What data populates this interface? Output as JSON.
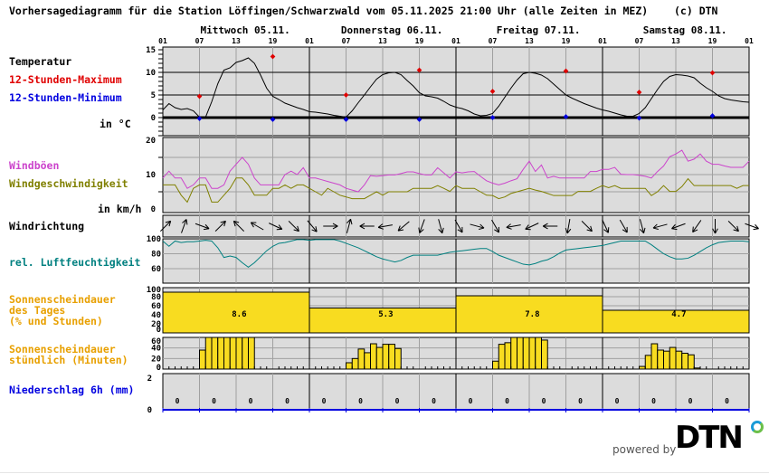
{
  "title": "Vorhersagediagramm für die Station Löffingen/Schwarzwald vom 05.11.2025 21:00 Uhr (alle Zeiten in MEZ)",
  "copyright": "(c) DTN",
  "days": [
    "Mittwoch 05.11.",
    "Donnerstag 06.11.",
    "Freitag 07.11.",
    "Samstag 08.11."
  ],
  "hour_ticks": [
    "01",
    "07",
    "13",
    "19",
    "01",
    "07",
    "13",
    "19",
    "01",
    "07",
    "13",
    "19",
    "01",
    "07",
    "13",
    "19",
    "01"
  ],
  "labels": {
    "temperature": "Temperatur",
    "max": "12-Stunden-Maximum",
    "min": "12-Stunden-Minimum",
    "temp_unit": "in °C",
    "gusts": "Windböen",
    "speed": "Windgeschwindigkeit",
    "wind_unit": "in km/h",
    "direction": "Windrichtung",
    "humidity": "rel. Luftfeuchtigkeit",
    "sun_daily": [
      "Sonnenscheindauer",
      "des Tages",
      "(% und Stunden)"
    ],
    "sun_hourly": [
      "Sonnenscheindauer",
      "stündlich (Minuten)"
    ],
    "precip": "Niederschlag 6h (mm)"
  },
  "colors": {
    "panel_bg": "#dcdcdc",
    "temperature": "#000000",
    "max": "#e00000",
    "min": "#0000e0",
    "gusts": "#cc44cc",
    "speed": "#808000",
    "humidity": "#008080",
    "sun_label": "#e8a000",
    "sun_bar": "#f8dc20",
    "precip": "#0000e0"
  },
  "chart_data": [
    {
      "type": "line",
      "name": "temperature",
      "ylabel": "in °C",
      "yticks": [
        "15",
        "10",
        "5",
        "0"
      ],
      "ylim": [
        -4,
        15.6
      ],
      "step": "1h",
      "values": [
        1.7,
        3.1,
        2.2,
        1.8,
        2.0,
        1.5,
        0.1,
        0.1,
        3.5,
        7.5,
        10.5,
        11.0,
        12.2,
        12.6,
        13.2,
        12.0,
        9.4,
        6.5,
        4.7,
        4.0,
        3.2,
        2.7,
        2.2,
        1.8,
        1.3,
        1.2,
        1.0,
        0.8,
        0.5,
        0.3,
        0.1,
        1.5,
        3.3,
        5.0,
        6.8,
        8.5,
        9.5,
        9.9,
        10.0,
        9.5,
        8.2,
        7.0,
        5.5,
        4.8,
        4.6,
        4.3,
        3.6,
        2.8,
        2.3,
        2.0,
        1.5,
        0.8,
        0.4,
        0.5,
        0.9,
        2.5,
        4.5,
        6.5,
        8.3,
        9.7,
        10.0,
        9.8,
        9.4,
        8.6,
        7.4,
        6.2,
        5.0,
        4.3,
        3.7,
        3.1,
        2.6,
        2.1,
        1.7,
        1.4,
        1.0,
        0.6,
        0.3,
        0.3,
        0.9,
        2.2,
        4.2,
        6.2,
        8.0,
        9.1,
        9.5,
        9.4,
        9.2,
        8.8,
        7.6,
        6.6,
        5.8,
        4.8,
        4.2,
        3.9,
        3.7,
        3.5,
        3.4
      ],
      "max_12h": [
        {
          "time": "05.11. 07",
          "value": 4.7
        },
        {
          "time": "05.11. 19",
          "value": 13.5
        },
        {
          "time": "06.11. 07",
          "value": 5.0
        },
        {
          "time": "06.11. 19",
          "value": 10.5
        },
        {
          "time": "07.11. 07",
          "value": 5.8
        },
        {
          "time": "07.11. 19",
          "value": 10.3
        },
        {
          "time": "08.11. 07",
          "value": 5.6
        },
        {
          "time": "08.11. 19",
          "value": 9.9
        }
      ],
      "min_12h": [
        {
          "time": "05.11. 07",
          "value": -0.2
        },
        {
          "time": "05.11. 19",
          "value": -0.4
        },
        {
          "time": "06.11. 07",
          "value": -0.4
        },
        {
          "time": "06.11. 19",
          "value": -0.4
        },
        {
          "time": "07.11. 07",
          "value": 0.0
        },
        {
          "time": "07.11. 19",
          "value": 0.2
        },
        {
          "time": "08.11. 07",
          "value": -0.1
        },
        {
          "time": "08.11. 19",
          "value": 0.4
        }
      ]
    },
    {
      "type": "line",
      "name": "wind",
      "ylabel": "in km/h",
      "yticks": [
        "20",
        "10",
        "0"
      ],
      "ylim": [
        0,
        20.5
      ],
      "step": "1h",
      "series": [
        {
          "name": "Windböen",
          "values": [
            9,
            11,
            9,
            9,
            6,
            7,
            9,
            9,
            6,
            6,
            7,
            11,
            13,
            15,
            13,
            9,
            7,
            7,
            7,
            7,
            10,
            11,
            10,
            12,
            9,
            9,
            8.5,
            8,
            7.5,
            7,
            6,
            5.5,
            5,
            7,
            9.7,
            9.5,
            9.7,
            9.9,
            9.9,
            10.3,
            10.8,
            10.8,
            10.3,
            9.9,
            9.9,
            12,
            10.5,
            9,
            10.8,
            10.5,
            10.8,
            10.9,
            9.5,
            8.2,
            7.5,
            7,
            7.5,
            8.2,
            8.8,
            11.5,
            13.9,
            10.9,
            12.8,
            9,
            9.5,
            9,
            9,
            9,
            9,
            9,
            10.9,
            10.9,
            11.5,
            11.5,
            12.1,
            10.1,
            10,
            10,
            9.8,
            9.5,
            9,
            10.9,
            12.5,
            15.2,
            16,
            17.1,
            13.9,
            14.5,
            16,
            13.9,
            13,
            13,
            12.5,
            12.1,
            12.1,
            12.1,
            13.9
          ]
        },
        {
          "name": "Windgeschwindigkeit",
          "values": [
            7,
            7,
            7,
            4,
            2,
            6,
            7,
            7,
            2,
            2,
            4,
            6,
            9,
            9,
            7,
            4,
            4,
            4,
            6,
            6,
            7,
            6,
            7,
            7,
            6,
            5,
            4,
            6,
            5,
            4,
            3.5,
            3,
            3,
            3,
            4,
            5,
            4,
            5,
            5,
            5,
            5,
            6,
            6,
            6,
            6,
            6.8,
            6,
            5.1,
            6.8,
            6,
            6,
            6,
            5,
            4,
            3.9,
            3,
            3.5,
            4.5,
            5,
            5.5,
            6,
            5.5,
            5.1,
            4.5,
            3.9,
            3.9,
            3.9,
            3.9,
            5.1,
            5.1,
            5.1,
            6,
            6.8,
            6.2,
            6.8,
            6,
            6,
            6,
            6,
            6,
            3.9,
            5,
            6.8,
            5.1,
            5.1,
            6.5,
            8.8,
            6.8,
            6.8,
            6.8,
            6.8,
            6.8,
            6.8,
            6.8,
            6,
            6.8,
            6.8
          ]
        }
      ]
    },
    {
      "type": "arrows",
      "name": "wind-direction",
      "step": "3h",
      "arrow_heading_deg": [
        45,
        20,
        110,
        45,
        315,
        300,
        115,
        135,
        140,
        90,
        15,
        270,
        260,
        230,
        200,
        165,
        150,
        105,
        150,
        260,
        245,
        270,
        190,
        135,
        155,
        150,
        165,
        255,
        250,
        215,
        180,
        135,
        110
      ]
    },
    {
      "type": "line",
      "name": "humidity",
      "yticks": [
        "100",
        "80",
        "60"
      ],
      "ylim": [
        40,
        100
      ],
      "step": "1h",
      "values": [
        97,
        90,
        97,
        95,
        96,
        96,
        97,
        98,
        97,
        88,
        75,
        77,
        75,
        68,
        62,
        68,
        76,
        84,
        90,
        94,
        95,
        97,
        99,
        99,
        98,
        99,
        99,
        99,
        99,
        97,
        94,
        91,
        88,
        84,
        80,
        76,
        73,
        71,
        69,
        71,
        75,
        78,
        78,
        78,
        78,
        78,
        80,
        82,
        83,
        84,
        85,
        86,
        87,
        87,
        83,
        78,
        75,
        72,
        69,
        66,
        65,
        67,
        70,
        72,
        76,
        81,
        85,
        86,
        87,
        88,
        89,
        90,
        91,
        93,
        95,
        97,
        97,
        97,
        97,
        97,
        92,
        86,
        80,
        76,
        73,
        73,
        74,
        78,
        83,
        88,
        92,
        95,
        96,
        97,
        97,
        97,
        96
      ]
    },
    {
      "type": "bar",
      "name": "sunshine-daily",
      "yticks": [
        "100",
        "80",
        "60",
        "40",
        "20",
        "0"
      ],
      "ylim": [
        0,
        100
      ],
      "categories": [
        "Mittwoch 05.11.",
        "Donnerstag 06.11.",
        "Freitag 07.11.",
        "Samstag 08.11."
      ],
      "percent": [
        90,
        55,
        82,
        50
      ],
      "hours": [
        "8.6",
        "5.3",
        "7.8",
        "4.7"
      ]
    },
    {
      "type": "bar",
      "name": "sunshine-hourly",
      "yticks": [
        "60",
        "40",
        "20",
        "0"
      ],
      "ylim": [
        0,
        60
      ],
      "days": [
        {
          "first_hour": "07",
          "minutes": [
            36,
            60,
            60,
            60,
            60,
            60,
            60,
            60,
            60
          ]
        },
        {
          "first_hour": "07",
          "minutes": [
            12,
            20,
            38,
            31,
            48,
            41,
            47,
            47,
            39
          ]
        },
        {
          "first_hour": "07",
          "minutes": [
            15,
            47,
            50,
            60,
            60,
            60,
            60,
            60,
            55
          ]
        },
        {
          "first_hour": "07",
          "minutes": [
            5,
            26,
            48,
            36,
            34,
            41,
            34,
            30,
            27,
            2
          ]
        }
      ]
    },
    {
      "type": "bar",
      "name": "precipitation-6h",
      "yticks": [
        "2",
        "0"
      ],
      "ylim": [
        0,
        2
      ],
      "values": [
        "0",
        "0",
        "0",
        "0",
        "0",
        "0",
        "0",
        "0",
        "0",
        "0",
        "0",
        "0",
        "0",
        "0",
        "0",
        "0"
      ]
    }
  ],
  "footer": {
    "powered_by": "powered by",
    "logo": "DTN"
  }
}
